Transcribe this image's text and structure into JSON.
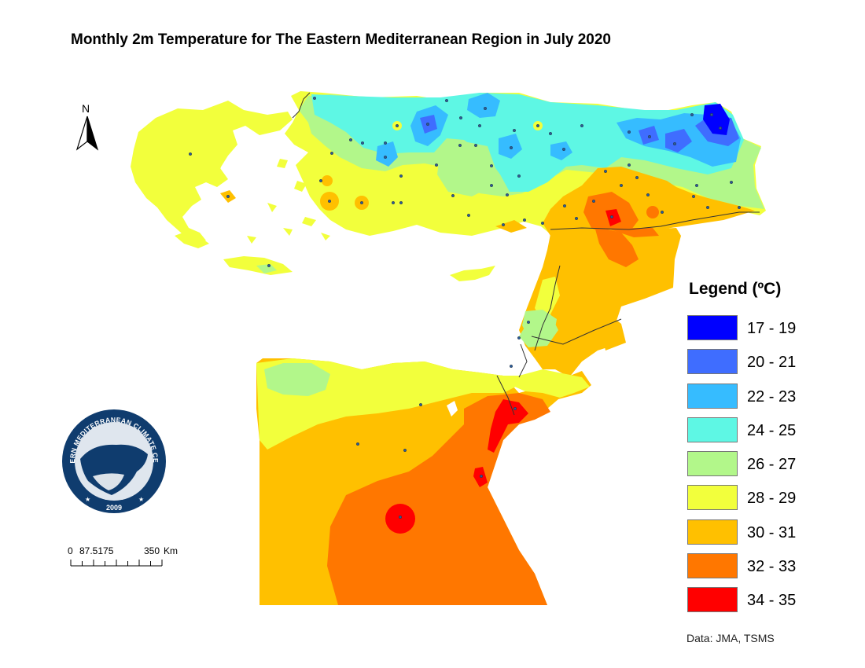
{
  "title": "Monthly 2m Temperature for The Eastern Mediterranean Region in July 2020",
  "north_arrow": {
    "label": "N",
    "icon": "north-arrow-icon"
  },
  "logo": {
    "ring_text": "EASTERN MEDITERRANEAN CLIMATE CENTRE",
    "year": "2009",
    "icon": "emcc-logo-icon"
  },
  "scale_bar": {
    "labels": [
      "0",
      "87.5175",
      "350",
      "Km"
    ]
  },
  "legend": {
    "title": "Legend (ºC)",
    "items": [
      {
        "label": "17 - 19",
        "color": "#0000ff"
      },
      {
        "label": "20 - 21",
        "color": "#3f6dff"
      },
      {
        "label": "22 - 23",
        "color": "#36bcff"
      },
      {
        "label": "24 - 25",
        "color": "#5ef7e4"
      },
      {
        "label": "26 - 27",
        "color": "#b2f78a"
      },
      {
        "label": "28 - 29",
        "color": "#f2ff3c"
      },
      {
        "label": "30 - 31",
        "color": "#ffc000"
      },
      {
        "label": "32 - 33",
        "color": "#ff7700"
      },
      {
        "label": "34 - 35",
        "color": "#ff0000"
      }
    ]
  },
  "source": "Data: JMA, TSMS"
}
